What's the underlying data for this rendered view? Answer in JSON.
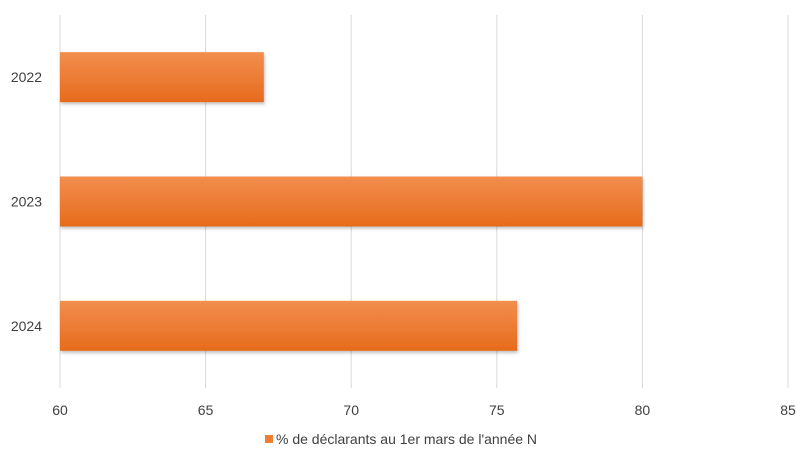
{
  "chart_data": {
    "type": "bar",
    "orientation": "horizontal",
    "categories": [
      "2022",
      "2023",
      "2024"
    ],
    "series": [
      {
        "name": "% de déclarants au 1er mars de l'année N",
        "values": [
          67,
          80,
          75.7
        ],
        "color": "#ED7D31"
      }
    ],
    "xlim": [
      60,
      85
    ],
    "xticks": [
      "60",
      "65",
      "70",
      "75",
      "80",
      "85"
    ],
    "grid": true,
    "legend_position": "bottom"
  }
}
